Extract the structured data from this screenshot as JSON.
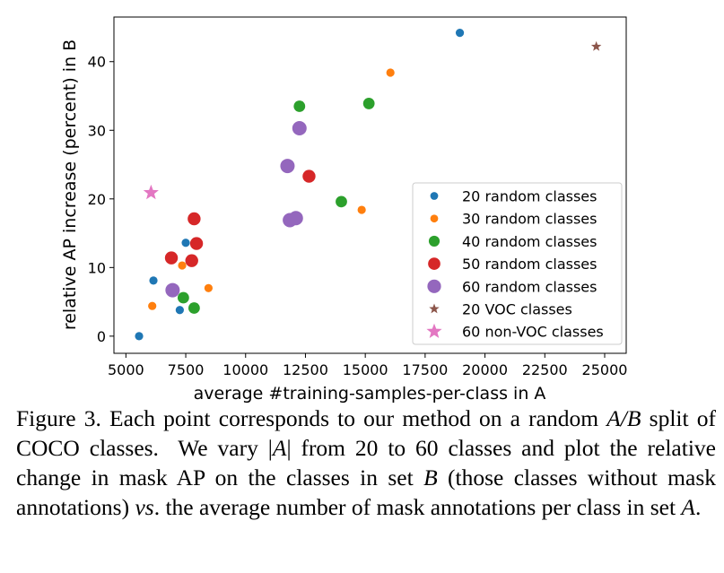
{
  "chart_data": {
    "type": "scatter",
    "xlabel": "average #training-samples-per-class in A",
    "ylabel": "relative AP increase (percent) in B",
    "xlim": [
      4500,
      25900
    ],
    "ylim": [
      -2.5,
      46.5
    ],
    "xticks": [
      5000,
      7500,
      10000,
      12500,
      15000,
      17500,
      20000,
      22500,
      25000
    ],
    "yticks": [
      0,
      10,
      20,
      30,
      40
    ],
    "grid": false,
    "legend_position": "lower-right",
    "series": [
      {
        "name": "20 random classes",
        "color": "#1f77b4",
        "marker": "circle",
        "size": "small",
        "points": [
          [
            5550,
            0.0
          ],
          [
            6150,
            8.1
          ],
          [
            7250,
            3.8
          ],
          [
            7500,
            13.6
          ],
          [
            18950,
            44.2
          ]
        ]
      },
      {
        "name": "30 random classes",
        "color": "#ff7f0e",
        "marker": "circle",
        "size": "small",
        "points": [
          [
            6100,
            4.4
          ],
          [
            7350,
            10.3
          ],
          [
            8450,
            7.0
          ],
          [
            14850,
            18.4
          ],
          [
            16050,
            38.4
          ]
        ]
      },
      {
        "name": "40 random classes",
        "color": "#2ca02c",
        "marker": "circle",
        "size": "medium",
        "points": [
          [
            7400,
            5.6
          ],
          [
            7850,
            4.1
          ],
          [
            12250,
            33.5
          ],
          [
            14000,
            19.6
          ],
          [
            15150,
            33.9
          ]
        ]
      },
      {
        "name": "50 random classes",
        "color": "#d62728",
        "marker": "circle",
        "size": "large",
        "points": [
          [
            6900,
            11.4
          ],
          [
            7750,
            11.0
          ],
          [
            7850,
            17.1
          ],
          [
            7950,
            13.5
          ],
          [
            12650,
            23.3
          ]
        ]
      },
      {
        "name": "60 random classes",
        "color": "#9467bd",
        "marker": "circle",
        "size": "xlarge",
        "points": [
          [
            6950,
            6.7
          ],
          [
            11750,
            24.8
          ],
          [
            11850,
            16.9
          ],
          [
            12100,
            17.2
          ],
          [
            12250,
            30.3
          ]
        ]
      },
      {
        "name": "20 VOC classes",
        "color": "#8c564b",
        "marker": "star",
        "size": "small",
        "points": [
          [
            24650,
            42.2
          ]
        ]
      },
      {
        "name": "60 non-VOC classes",
        "color": "#e377c2",
        "marker": "star",
        "size": "large",
        "points": [
          [
            6050,
            20.9
          ]
        ]
      }
    ]
  },
  "caption": {
    "segments": [
      {
        "text": "Figure 3. Each point corresponds to our method on a random ",
        "style": "normal"
      },
      {
        "text": "A/B",
        "style": "italic"
      },
      {
        "text": " split of COCO classes.  We vary |",
        "style": "normal"
      },
      {
        "text": "A",
        "style": "italic"
      },
      {
        "text": "| from 20 to 60 classes and plot the relative change in mask AP on the classes in set ",
        "style": "normal"
      },
      {
        "text": "B",
        "style": "italic"
      },
      {
        "text": " (those classes without mask annotations) ",
        "style": "normal"
      },
      {
        "text": "vs",
        "style": "italic"
      },
      {
        "text": ". the average number of mask annotations per class in set ",
        "style": "normal"
      },
      {
        "text": "A",
        "style": "italic"
      },
      {
        "text": ".",
        "style": "normal"
      }
    ]
  }
}
